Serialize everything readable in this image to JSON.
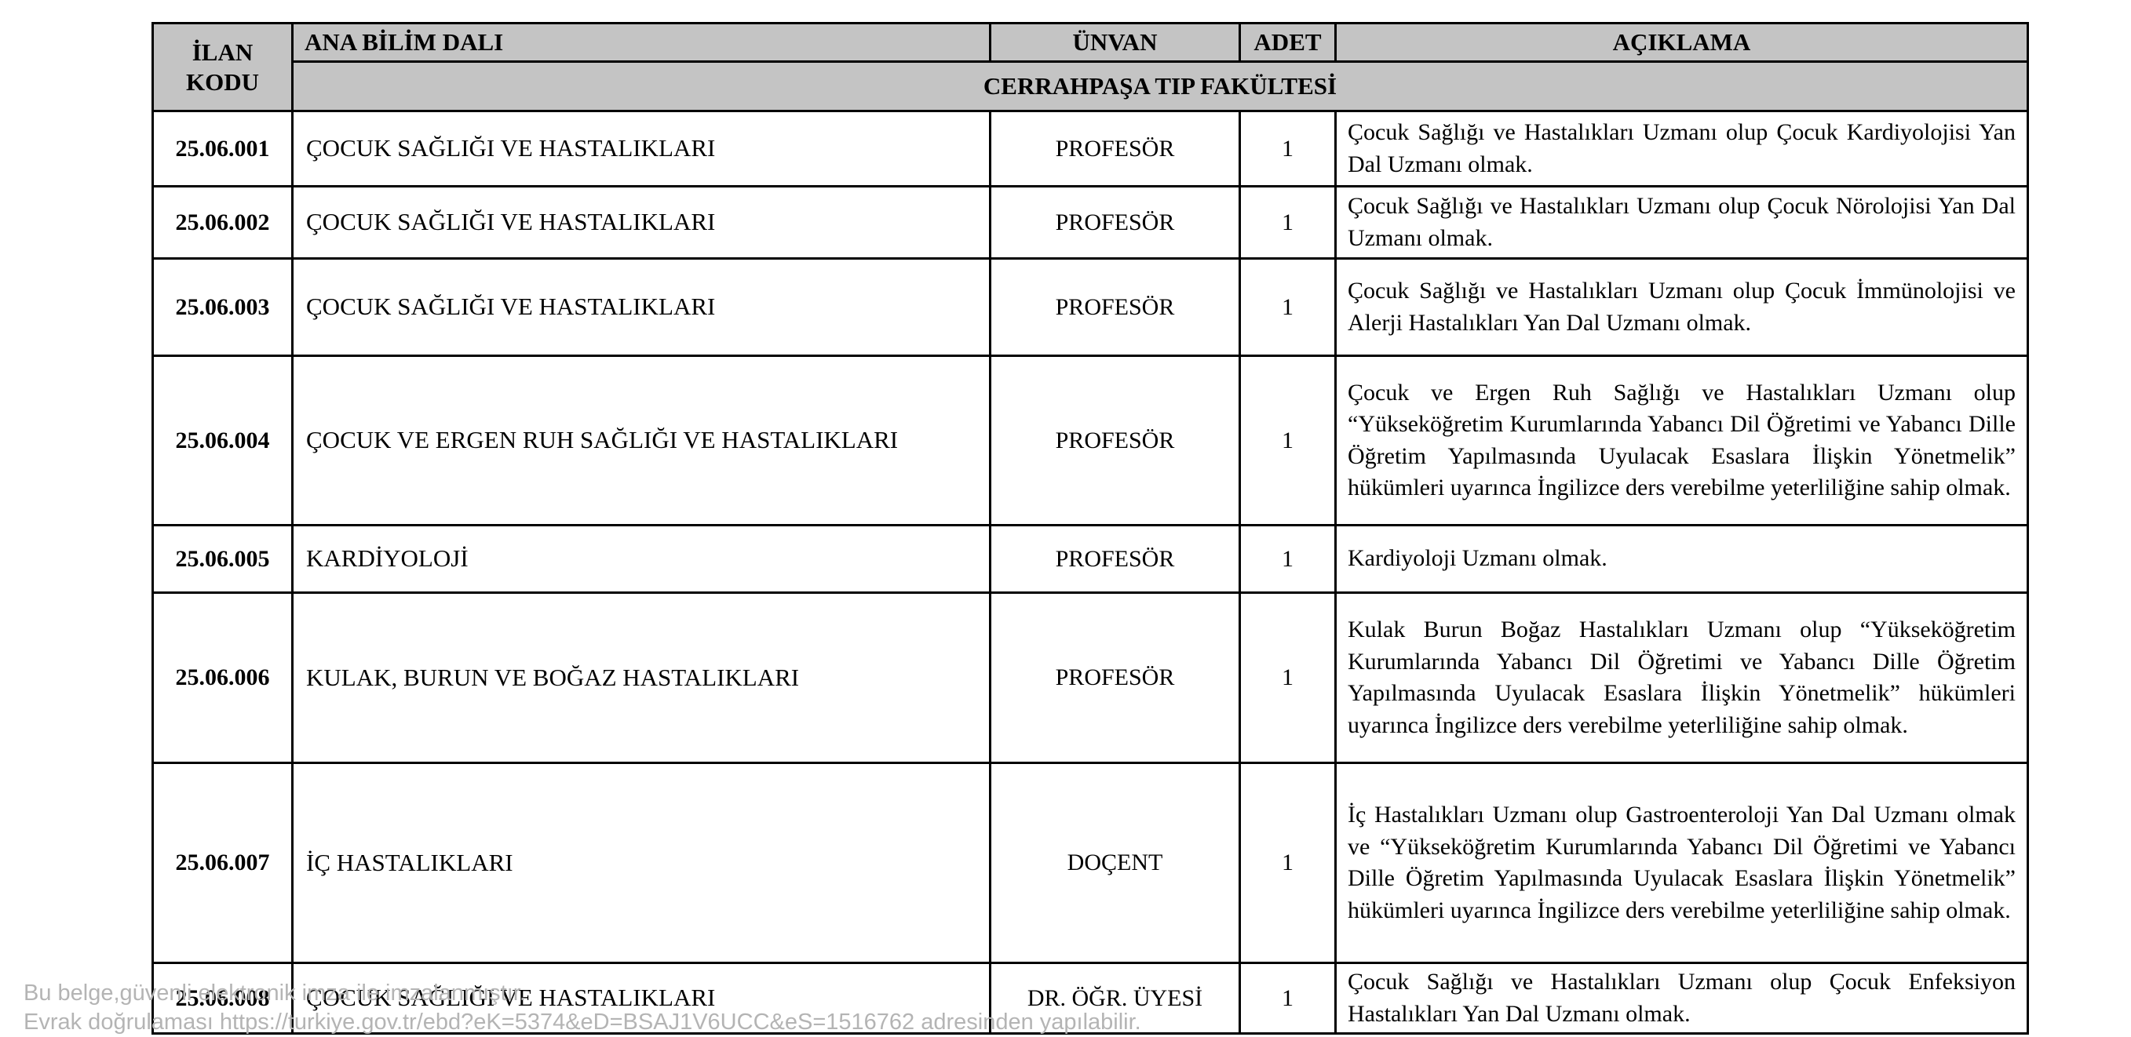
{
  "table": {
    "headers": {
      "ilan_kodu": "İLAN KODU",
      "ana_bilim_dali": "ANA BİLİM DALI",
      "unvan": "ÜNVAN",
      "adet": "ADET",
      "aciklama": "AÇIKLAMA"
    },
    "group_header": "CERRAHPAŞA TIP FAKÜLTESİ",
    "rows": [
      {
        "ilan_kodu": "25.06.001",
        "ana_bilim_dali": "ÇOCUK SAĞLIĞI VE HASTALIKLARI",
        "unvan": "PROFESÖR",
        "adet": "1",
        "aciklama": "Çocuk Sağlığı ve Hastalıkları Uzmanı olup Çocuk Kardiyolojisi Yan Dal Uzmanı olmak."
      },
      {
        "ilan_kodu": "25.06.002",
        "ana_bilim_dali": "ÇOCUK SAĞLIĞI VE HASTALIKLARI",
        "unvan": "PROFESÖR",
        "adet": "1",
        "aciklama": "Çocuk Sağlığı ve Hastalıkları Uzmanı olup Çocuk Nörolojisi Yan Dal Uzmanı olmak."
      },
      {
        "ilan_kodu": "25.06.003",
        "ana_bilim_dali": "ÇOCUK SAĞLIĞI VE HASTALIKLARI",
        "unvan": "PROFESÖR",
        "adet": "1",
        "aciklama": "Çocuk Sağlığı ve Hastalıkları Uzmanı olup Çocuk İmmünolojisi ve Alerji Hastalıkları Yan Dal Uzmanı olmak."
      },
      {
        "ilan_kodu": "25.06.004",
        "ana_bilim_dali": "ÇOCUK VE ERGEN RUH SAĞLIĞI VE HASTALIKLARI",
        "unvan": "PROFESÖR",
        "adet": "1",
        "aciklama": "Çocuk ve Ergen Ruh Sağlığı ve Hastalıkları Uzmanı olup “Yükseköğretim Kurumlarında Yabancı Dil Öğretimi ve Yabancı Dille Öğretim Yapılmasında Uyulacak Esaslara İlişkin Yönetmelik” hükümleri uyarınca İngilizce ders verebilme yeterliliğine sahip olmak."
      },
      {
        "ilan_kodu": "25.06.005",
        "ana_bilim_dali": "KARDİYOLOJİ",
        "unvan": "PROFESÖR",
        "adet": "1",
        "aciklama": "Kardiyoloji Uzmanı olmak."
      },
      {
        "ilan_kodu": "25.06.006",
        "ana_bilim_dali": "KULAK, BURUN VE BOĞAZ HASTALIKLARI",
        "unvan": "PROFESÖR",
        "adet": "1",
        "aciklama": "Kulak Burun Boğaz Hastalıkları Uzmanı olup “Yükseköğretim Kurumlarında Yabancı Dil Öğretimi ve Yabancı Dille Öğretim Yapılmasında Uyulacak Esaslara İlişkin Yönetmelik” hükümleri uyarınca İngilizce ders verebilme yeterliliğine sahip olmak."
      },
      {
        "ilan_kodu": "25.06.007",
        "ana_bilim_dali": "İÇ HASTALIKLARI",
        "unvan": "DOÇENT",
        "adet": "1",
        "aciklama": "İç Hastalıkları Uzmanı olup Gastroenteroloji Yan Dal Uzmanı olmak ve “Yükseköğretim Kurumlarında Yabancı Dil Öğretimi ve Yabancı Dille Öğretim Yapılmasında Uyulacak Esaslara İlişkin Yönetmelik” hükümleri uyarınca İngilizce ders verebilme yeterliliğine sahip olmak."
      },
      {
        "ilan_kodu": "25.06.008",
        "ana_bilim_dali": "ÇOCUK SAĞLIĞI VE HASTALIKLARI",
        "unvan": "DR. ÖĞR. ÜYESİ",
        "adet": "1",
        "aciklama": "Çocuk Sağlığı ve Hastalıkları Uzmanı olup Çocuk Enfeksiyon Hastalıkları Yan Dal Uzmanı olmak."
      }
    ]
  },
  "footer": {
    "line1": "Bu belge,güvenli elektronik imza ile imzalanmıştır.",
    "line2": "Evrak doğrulaması https://turkiye.gov.tr/ebd?eK=5374&eD=BSAJ1V6UCC&eS=1516762 adresinden yapılabilir."
  },
  "colors": {
    "header_background": "#c4c4c4",
    "border": "#000000",
    "footer_text": "#b4b4b4",
    "page_background": "#ffffff"
  }
}
